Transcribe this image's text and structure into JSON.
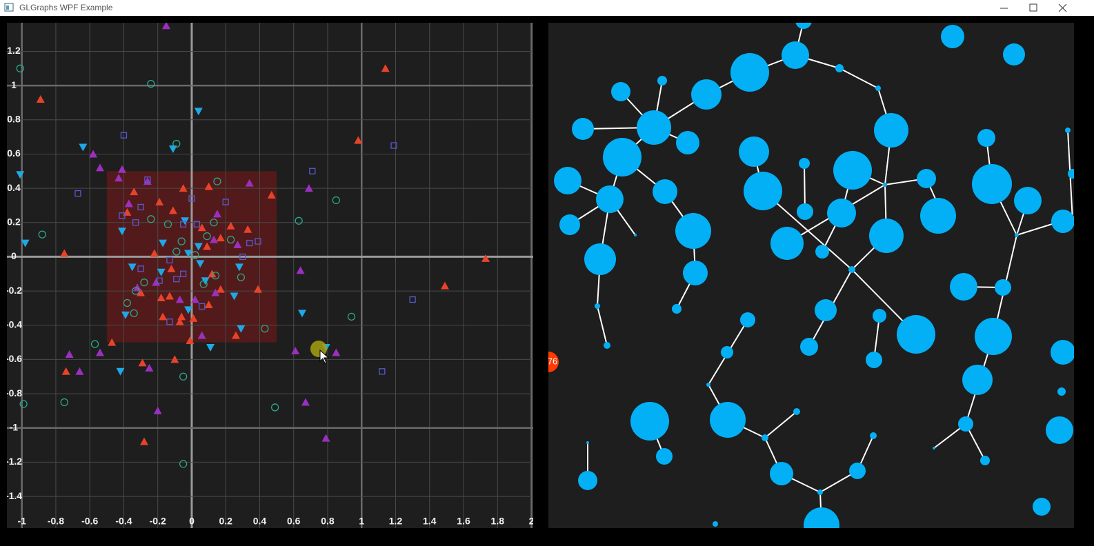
{
  "window": {
    "title": "GLGraphs WPF Example"
  },
  "chart_data": {
    "type": "scatter",
    "xlim": [
      -1.088,
      2.01
    ],
    "ylim": [
      -1.585,
      1.367
    ],
    "xticks": [
      -1,
      -0.8,
      -0.6,
      -0.4,
      -0.2,
      0,
      0.2,
      0.4,
      0.6,
      0.8,
      1,
      1.2,
      1.4,
      1.6,
      1.8,
      2
    ],
    "yticks": [
      1.2,
      1,
      0.8,
      0.6,
      0.4,
      0.2,
      0,
      -0.2,
      -0.4,
      -0.6,
      -0.8,
      -1,
      -1.2,
      -1.4
    ],
    "grid": true,
    "background": "#1e1e1e",
    "highlight_box": {
      "x": [
        -0.5,
        0.5
      ],
      "y": [
        -0.5,
        0.5
      ],
      "color": "#5c1a1a"
    },
    "series": [
      {
        "color": "#e8432a",
        "marker": "triangle-up",
        "filled": true,
        "x": [
          1.14,
          -0.89,
          0.98,
          -0.75,
          1.73,
          1.49,
          -0.47,
          -0.74,
          -0.28,
          -0.29,
          -0.1,
          -0.01,
          0.26,
          0.47,
          0.1,
          -0.05,
          -0.19,
          -0.37,
          -0.34,
          -0.38,
          -0.11,
          0.06,
          0.23,
          0.33,
          0.39,
          0.17,
          0.1,
          -0.06,
          -0.18,
          -0.3,
          -0.17,
          0.01,
          -0.12,
          -0.22,
          0.09,
          0.17,
          0.12,
          -0.13,
          -0.07
        ],
        "values": [
          1.1,
          0.92,
          0.68,
          0.02,
          -0.01,
          -0.17,
          -0.5,
          -0.67,
          -1.08,
          -0.62,
          -0.6,
          -0.49,
          -0.46,
          0.36,
          0.41,
          0.4,
          0.32,
          0.31,
          0.38,
          0.26,
          0.27,
          0.17,
          0.18,
          0.16,
          -0.19,
          -0.19,
          -0.28,
          -0.35,
          -0.24,
          -0.21,
          -0.35,
          -0.36,
          -0.07,
          0.02,
          0.06,
          0.11,
          -0.1,
          -0.23,
          -0.38
        ]
      },
      {
        "color": "#9b30c0",
        "marker": "triangle-up",
        "filled": true,
        "x": [
          -0.15,
          -0.58,
          -0.54,
          -0.41,
          -0.43,
          -0.26,
          -0.37,
          0.34,
          0.69,
          0.15,
          0.13,
          0.27,
          0.64,
          -0.07,
          0.14,
          -0.21,
          0.02,
          0.06,
          -0.25,
          -0.54,
          -0.72,
          -0.66,
          -0.2,
          0.61,
          0.85,
          0.67,
          0.79,
          -0.32
        ],
        "values": [
          1.35,
          0.6,
          0.52,
          0.51,
          0.46,
          0.44,
          0.31,
          0.43,
          0.4,
          0.25,
          0.1,
          0.07,
          -0.08,
          -0.25,
          -0.21,
          -0.15,
          -0.25,
          -0.46,
          -0.65,
          -0.56,
          -0.57,
          -0.67,
          -0.9,
          -0.55,
          -0.56,
          -0.85,
          -1.06,
          -0.18
        ]
      },
      {
        "color": "#1ea8e6",
        "marker": "triangle-down",
        "filled": true,
        "x": [
          0.04,
          -0.11,
          -0.64,
          -1.01,
          -0.98,
          -0.41,
          -0.17,
          -0.04,
          0.04,
          -0.02,
          -0.35,
          0.05,
          0.28,
          -0.39,
          -0.02,
          0.29,
          0.25,
          0.11,
          -0.42,
          0.65,
          0.79,
          -0.18,
          0.08
        ],
        "values": [
          0.85,
          0.63,
          0.64,
          0.48,
          0.08,
          0.15,
          0.08,
          0.21,
          0.06,
          0.02,
          -0.06,
          -0.04,
          -0.06,
          -0.34,
          -0.31,
          -0.42,
          -0.23,
          -0.53,
          -0.67,
          -0.33,
          -0.53,
          -0.09,
          -0.14
        ]
      },
      {
        "color": "#2aa88a",
        "marker": "circle",
        "filled": false,
        "x": [
          -1.01,
          -0.24,
          -0.09,
          -0.88,
          0.15,
          0.85,
          0.63,
          -0.24,
          -0.14,
          0.13,
          0.23,
          0.09,
          -0.06,
          -0.09,
          0.02,
          0.14,
          0.29,
          0.07,
          -0.28,
          -0.33,
          -0.38,
          -0.34,
          0.43,
          0.94,
          -0.57,
          -0.05,
          -0.75,
          -0.99,
          0.49,
          -0.05
        ],
        "values": [
          1.1,
          1.01,
          0.66,
          0.13,
          0.44,
          0.33,
          0.21,
          0.22,
          0.19,
          0.2,
          0.1,
          0.12,
          0.09,
          0.03,
          0.01,
          -0.11,
          -0.12,
          -0.16,
          -0.15,
          -0.2,
          -0.27,
          -0.33,
          -0.42,
          -0.35,
          -0.51,
          -0.7,
          -0.85,
          -0.86,
          -0.88,
          -1.21
        ]
      },
      {
        "color": "#5a5ad0",
        "marker": "square",
        "filled": false,
        "x": [
          -0.4,
          -0.67,
          1.19,
          0.71,
          -0.26,
          0,
          0.2,
          -0.3,
          -0.41,
          -0.33,
          -0.05,
          0.03,
          0.34,
          0.39,
          0.3,
          1.3,
          -0.3,
          -0.09,
          -0.05,
          -0.13,
          0.06,
          -0.19,
          1.12,
          -0.13
        ],
        "values": [
          0.71,
          0.37,
          0.65,
          0.5,
          0.45,
          0.34,
          0.32,
          0.29,
          0.24,
          0.2,
          0.19,
          0.19,
          0.08,
          0.09,
          0,
          -0.25,
          -0.07,
          -0.13,
          -0.1,
          -0.38,
          -0.29,
          -0.14,
          -0.67,
          -0.02
        ]
      }
    ]
  },
  "graph_view": {
    "node_label": "76"
  }
}
